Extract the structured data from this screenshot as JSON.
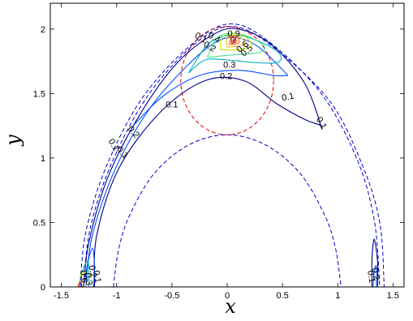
{
  "chart_data": {
    "type": "contour",
    "title": "",
    "xlabel": "x",
    "ylabel": "y",
    "xlim": [
      -1.6,
      1.6
    ],
    "ylim": [
      0,
      2.2
    ],
    "xticks": [
      -1.5,
      -1,
      -0.5,
      0,
      0.5,
      1,
      1.5
    ],
    "xtick_labels": [
      "-1.5",
      "-1",
      "-0.5",
      "0",
      "0.5",
      "1",
      "1.5"
    ],
    "yticks": [
      0,
      0.5,
      1,
      1.5,
      2
    ],
    "ytick_labels": [
      "0",
      "0.5",
      "1",
      "1.5",
      "2"
    ],
    "grid": false,
    "colors": {
      "contour_0_1": "#00008f",
      "contour_0_2": "#0050ff",
      "contour_0_3": "#00b0c0",
      "contour_0_4": "#40e090",
      "contour_0_5": "#c8e000",
      "contour_0_6": "#ffc000",
      "contour_0_7": "#ff6000",
      "contour_0_8": "#e00000",
      "contour_0_9": "#900000",
      "dashed_blue": "#0000d0",
      "dashed_red": "#e00000"
    },
    "dashed_curves": [
      {
        "style": "outer-arch-left",
        "color": "dashed_blue",
        "points": [
          [
            -1.33,
            0
          ],
          [
            -1.28,
            0.42
          ],
          [
            -1.1,
            0.92
          ],
          [
            -0.78,
            1.45
          ],
          [
            -0.35,
            1.86
          ],
          [
            0.02,
            2.04
          ],
          [
            0.38,
            1.9
          ],
          [
            0.85,
            1.5
          ],
          [
            1.17,
            1.0
          ],
          [
            1.33,
            0.52
          ],
          [
            1.38,
            0
          ]
        ]
      },
      {
        "style": "outer-arch-right",
        "color": "dashed_blue",
        "points": [
          [
            -1.3,
            0
          ],
          [
            -1.24,
            0.45
          ],
          [
            -1.05,
            0.95
          ],
          [
            -0.72,
            1.48
          ],
          [
            -0.3,
            1.88
          ],
          [
            0.04,
            2.02
          ],
          [
            0.4,
            1.87
          ],
          [
            0.92,
            1.45
          ],
          [
            1.22,
            0.95
          ],
          [
            1.38,
            0.5
          ],
          [
            1.42,
            0
          ]
        ]
      },
      {
        "style": "inner-semicircle",
        "color": "dashed_blue",
        "points": [
          [
            -1.03,
            0
          ],
          [
            -0.98,
            0.3
          ],
          [
            -0.88,
            0.56
          ],
          [
            -0.66,
            0.88
          ],
          [
            -0.35,
            1.1
          ],
          [
            0.0,
            1.18
          ],
          [
            0.35,
            1.1
          ],
          [
            0.66,
            0.88
          ],
          [
            0.88,
            0.56
          ],
          [
            0.98,
            0.3
          ],
          [
            1.03,
            0
          ]
        ]
      },
      {
        "style": "red-circle",
        "color": "dashed_red",
        "cx": 0.0,
        "cy": 1.6,
        "r": 0.42
      }
    ],
    "contours": [
      {
        "level": 0.1,
        "color": "contour_0_1",
        "points": [
          [
            -1.3,
            0
          ],
          [
            -1.25,
            0.35
          ],
          [
            -1.08,
            0.85
          ],
          [
            -0.78,
            1.35
          ],
          [
            -0.45,
            1.74
          ],
          [
            -0.12,
            1.96
          ],
          [
            0.1,
            2.0
          ],
          [
            0.4,
            1.88
          ],
          [
            0.7,
            1.58
          ],
          [
            0.86,
            1.22
          ]
        ]
      },
      {
        "level": 0.1,
        "color": "contour_0_1",
        "points": [
          [
            -1.2,
            0
          ],
          [
            -1.18,
            0.4
          ],
          [
            -0.98,
            0.92
          ],
          [
            -0.6,
            1.36
          ],
          [
            -0.2,
            1.6
          ],
          [
            0.15,
            1.6
          ],
          [
            0.45,
            1.42
          ],
          [
            0.7,
            1.3
          ],
          [
            0.86,
            1.25
          ]
        ]
      },
      {
        "level": 0.2,
        "color": "contour_0_2",
        "points": [
          [
            -1.28,
            0
          ],
          [
            -1.22,
            0.4
          ],
          [
            -1.02,
            0.9
          ],
          [
            -0.72,
            1.36
          ],
          [
            -0.38,
            1.7
          ],
          [
            -0.1,
            1.9
          ],
          [
            0.1,
            1.93
          ],
          [
            0.3,
            1.85
          ],
          [
            0.55,
            1.64
          ]
        ]
      },
      {
        "level": 0.2,
        "color": "contour_0_2",
        "points": [
          [
            -0.85,
            1.25
          ],
          [
            -0.58,
            1.48
          ],
          [
            -0.25,
            1.64
          ],
          [
            0.1,
            1.68
          ],
          [
            0.42,
            1.64
          ],
          [
            0.55,
            1.64
          ]
        ]
      },
      {
        "level": 0.3,
        "color": "contour_0_3",
        "points": [
          [
            -0.35,
            1.66
          ],
          [
            -0.2,
            1.76
          ],
          [
            0.0,
            1.76
          ],
          [
            0.25,
            1.74
          ],
          [
            0.45,
            1.74
          ],
          [
            0.48,
            1.8
          ],
          [
            0.35,
            1.88
          ],
          [
            0.1,
            1.95
          ],
          [
            -0.15,
            1.9
          ],
          [
            -0.35,
            1.66
          ]
        ]
      },
      {
        "level": 0.4,
        "color": "contour_0_4",
        "points": [
          [
            -0.18,
            1.78
          ],
          [
            0.05,
            1.8
          ],
          [
            0.3,
            1.82
          ],
          [
            0.32,
            1.88
          ],
          [
            0.12,
            1.96
          ],
          [
            -0.08,
            1.94
          ],
          [
            -0.18,
            1.78
          ]
        ]
      },
      {
        "level": 0.5,
        "color": "contour_0_5",
        "points": [
          [
            -0.06,
            1.84
          ],
          [
            0.12,
            1.84
          ],
          [
            0.22,
            1.88
          ],
          [
            0.12,
            1.96
          ],
          [
            -0.04,
            1.94
          ],
          [
            -0.06,
            1.84
          ]
        ]
      },
      {
        "level": 0.6,
        "color": "contour_0_6",
        "points": [
          [
            0.0,
            1.86
          ],
          [
            0.12,
            1.87
          ],
          [
            0.16,
            1.9
          ],
          [
            0.08,
            1.95
          ],
          [
            0.0,
            1.93
          ],
          [
            0.0,
            1.86
          ]
        ]
      },
      {
        "level": 0.7,
        "color": "contour_0_7",
        "points": [
          [
            0.02,
            1.88
          ],
          [
            0.1,
            1.89
          ],
          [
            0.1,
            1.93
          ],
          [
            0.04,
            1.94
          ],
          [
            0.02,
            1.88
          ]
        ]
      },
      {
        "level": 0.8,
        "color": "contour_0_8",
        "points": [
          [
            0.04,
            1.89
          ],
          [
            0.08,
            1.9
          ],
          [
            0.07,
            1.93
          ],
          [
            0.04,
            1.93
          ],
          [
            0.04,
            1.89
          ]
        ]
      },
      {
        "level": 0.9,
        "color": "contour_0_9",
        "points": [
          [
            0.05,
            1.9
          ],
          [
            0.07,
            1.91
          ],
          [
            0.06,
            1.92
          ],
          [
            0.05,
            1.9
          ]
        ]
      },
      {
        "level": 0.2,
        "color": "contour_0_2",
        "points": [
          [
            -1.28,
            0
          ],
          [
            -1.27,
            0.15
          ],
          [
            -1.22,
            0.3
          ],
          [
            -1.2,
            0.15
          ],
          [
            -1.21,
            0
          ]
        ]
      },
      {
        "level": 0.3,
        "color": "contour_0_3",
        "points": [
          [
            -1.32,
            0
          ],
          [
            -1.31,
            0.12
          ],
          [
            -1.26,
            0.2
          ],
          [
            -1.25,
            0.08
          ],
          [
            -1.25,
            0
          ]
        ]
      },
      {
        "level": 0.5,
        "color": "contour_0_5",
        "points": [
          [
            -1.34,
            0
          ],
          [
            -1.33,
            0.08
          ],
          [
            -1.29,
            0.12
          ],
          [
            -1.28,
            0.05
          ],
          [
            -1.28,
            0
          ]
        ]
      },
      {
        "level": 0.8,
        "color": "contour_0_8",
        "points": [
          [
            -1.35,
            0
          ],
          [
            -1.33,
            0.04
          ],
          [
            -1.31,
            0
          ]
        ]
      },
      {
        "level": 0.1,
        "color": "contour_0_1",
        "points": [
          [
            1.31,
            0
          ],
          [
            1.31,
            0.22
          ],
          [
            1.33,
            0.37
          ],
          [
            1.36,
            0.2
          ],
          [
            1.36,
            0
          ]
        ]
      },
      {
        "level": 0.2,
        "color": "contour_0_2",
        "points": [
          [
            1.32,
            0
          ],
          [
            1.33,
            0.12
          ],
          [
            1.35,
            0.16
          ],
          [
            1.35,
            0
          ]
        ]
      }
    ],
    "contour_labels": [
      {
        "text": "0.1",
        "x": 0.55,
        "y": 1.47,
        "color": "contour_0_1",
        "rotation": -12
      },
      {
        "text": "0.1",
        "x": -0.5,
        "y": 1.41,
        "color": "contour_0_1",
        "rotation": 0
      },
      {
        "text": "0.1",
        "x": -0.95,
        "y": 1.04,
        "color": "contour_0_1",
        "rotation": 48
      },
      {
        "text": "0.1",
        "x": -1.03,
        "y": 1.1,
        "color": "contour_0_1",
        "rotation": 60
      },
      {
        "text": "0.1",
        "x": 0.85,
        "y": 1.27,
        "color": "contour_0_1",
        "rotation": 60
      },
      {
        "text": "0.2",
        "x": -0.85,
        "y": 1.2,
        "color": "contour_0_2",
        "rotation": 50
      },
      {
        "text": "0.2",
        "x": -0.01,
        "y": 1.63,
        "color": "contour_0_2",
        "rotation": 0
      },
      {
        "text": "0.3",
        "x": 0.02,
        "y": 1.72,
        "color": "contour_0_3",
        "rotation": 0
      },
      {
        "text": "0.1",
        "x": -0.24,
        "y": 1.93,
        "color": "contour_0_1",
        "rotation": 30
      },
      {
        "text": "0.2",
        "x": -0.16,
        "y": 1.86,
        "color": "contour_0_2",
        "rotation": 30
      },
      {
        "text": "0.4",
        "x": -0.12,
        "y": 1.93,
        "color": "contour_0_4",
        "rotation": 30
      },
      {
        "text": "0.6",
        "x": 0.14,
        "y": 1.86,
        "color": "contour_0_6",
        "rotation": -40
      },
      {
        "text": "0.5",
        "x": 0.18,
        "y": 1.83,
        "color": "contour_0_5",
        "rotation": -40
      },
      {
        "text": "0.9",
        "x": 0.06,
        "y": 1.96,
        "color": "contour_0_9",
        "rotation": 0
      },
      {
        "text": "0.2",
        "x": -1.22,
        "y": 0.12,
        "color": "contour_0_2",
        "rotation": 80
      },
      {
        "text": "0.1",
        "x": -1.18,
        "y": 0.08,
        "color": "contour_0_1",
        "rotation": 80
      },
      {
        "text": "0.6",
        "x": -1.3,
        "y": 0.08,
        "color": "contour_0_6",
        "rotation": 80
      },
      {
        "text": "0.3",
        "x": -1.26,
        "y": 0.06,
        "color": "contour_0_3",
        "rotation": 80
      },
      {
        "text": "0.1",
        "x": 1.3,
        "y": 0.08,
        "color": "contour_0_1",
        "rotation": 80
      },
      {
        "text": "0.2",
        "x": 1.34,
        "y": 0.1,
        "color": "contour_0_2",
        "rotation": 80
      }
    ]
  }
}
